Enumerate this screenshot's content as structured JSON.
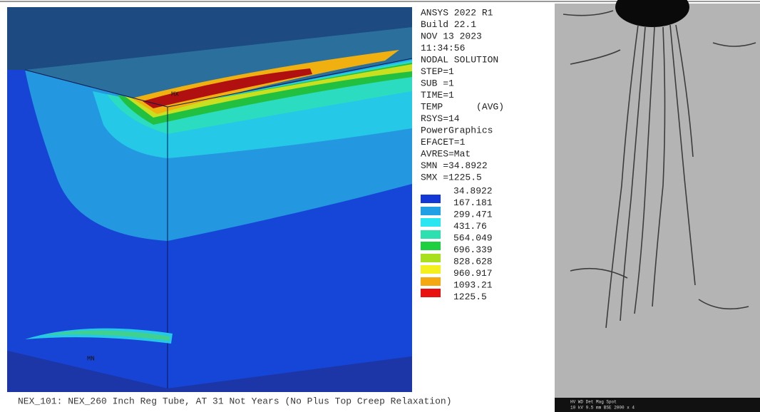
{
  "ansys_info": [
    "ANSYS 2022 R1",
    "Build 22.1",
    "NOV 13 2023",
    "11:34:56",
    "NODAL SOLUTION",
    "STEP=1",
    "SUB =1",
    "TIME=1",
    "TEMP      (AVG)",
    "RSYS=14",
    "PowerGraphics",
    "EFACET=1",
    "AVRES=Mat",
    "SMN =34.8922",
    "SMX =1225.5"
  ],
  "legend": [
    "34.8922",
    "167.181",
    "299.471",
    "431.76",
    "564.049",
    "696.339",
    "828.628",
    "960.917",
    "1093.21",
    "1225.5"
  ],
  "labels": {
    "max": "MX",
    "min": "MN"
  },
  "caption": "NEX_101: NEX_260 Inch Reg Tube, AT 31 Not Years (No Plus Top Creep Relaxation)",
  "sem_bar": {
    "header": "HV   WD   Det  Mag   Spot",
    "values": "10 kV 9.5 mm BSE 2000 x 4"
  }
}
